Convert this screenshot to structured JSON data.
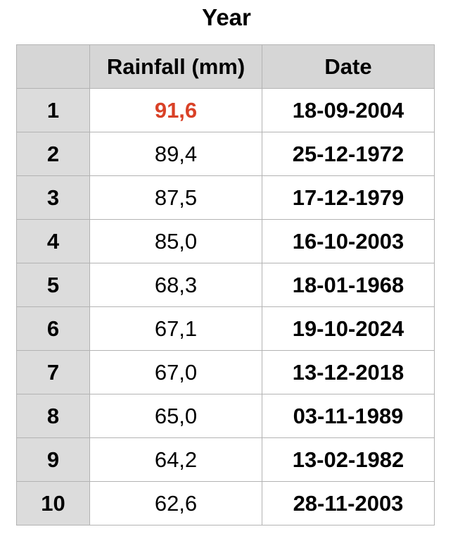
{
  "title": "Year",
  "colors": {
    "header_bg": "#d6d6d6",
    "rank_bg": "#dcdcdc",
    "highlight": "#d94127",
    "border": "#b3b3b3"
  },
  "table": {
    "headers": [
      "",
      "Rainfall (mm)",
      "Date"
    ],
    "rows": [
      {
        "rank": "1",
        "rainfall": "91,6",
        "date": "18-09-2004",
        "highlight": true
      },
      {
        "rank": "2",
        "rainfall": "89,4",
        "date": "25-12-1972"
      },
      {
        "rank": "3",
        "rainfall": "87,5",
        "date": "17-12-1979"
      },
      {
        "rank": "4",
        "rainfall": "85,0",
        "date": "16-10-2003"
      },
      {
        "rank": "5",
        "rainfall": "68,3",
        "date": "18-01-1968"
      },
      {
        "rank": "6",
        "rainfall": "67,1",
        "date": "19-10-2024"
      },
      {
        "rank": "7",
        "rainfall": "67,0",
        "date": "13-12-2018"
      },
      {
        "rank": "8",
        "rainfall": "65,0",
        "date": "03-11-1989"
      },
      {
        "rank": "9",
        "rainfall": "64,2",
        "date": "13-02-1982"
      },
      {
        "rank": "10",
        "rainfall": "62,6",
        "date": "28-11-2003"
      }
    ]
  }
}
